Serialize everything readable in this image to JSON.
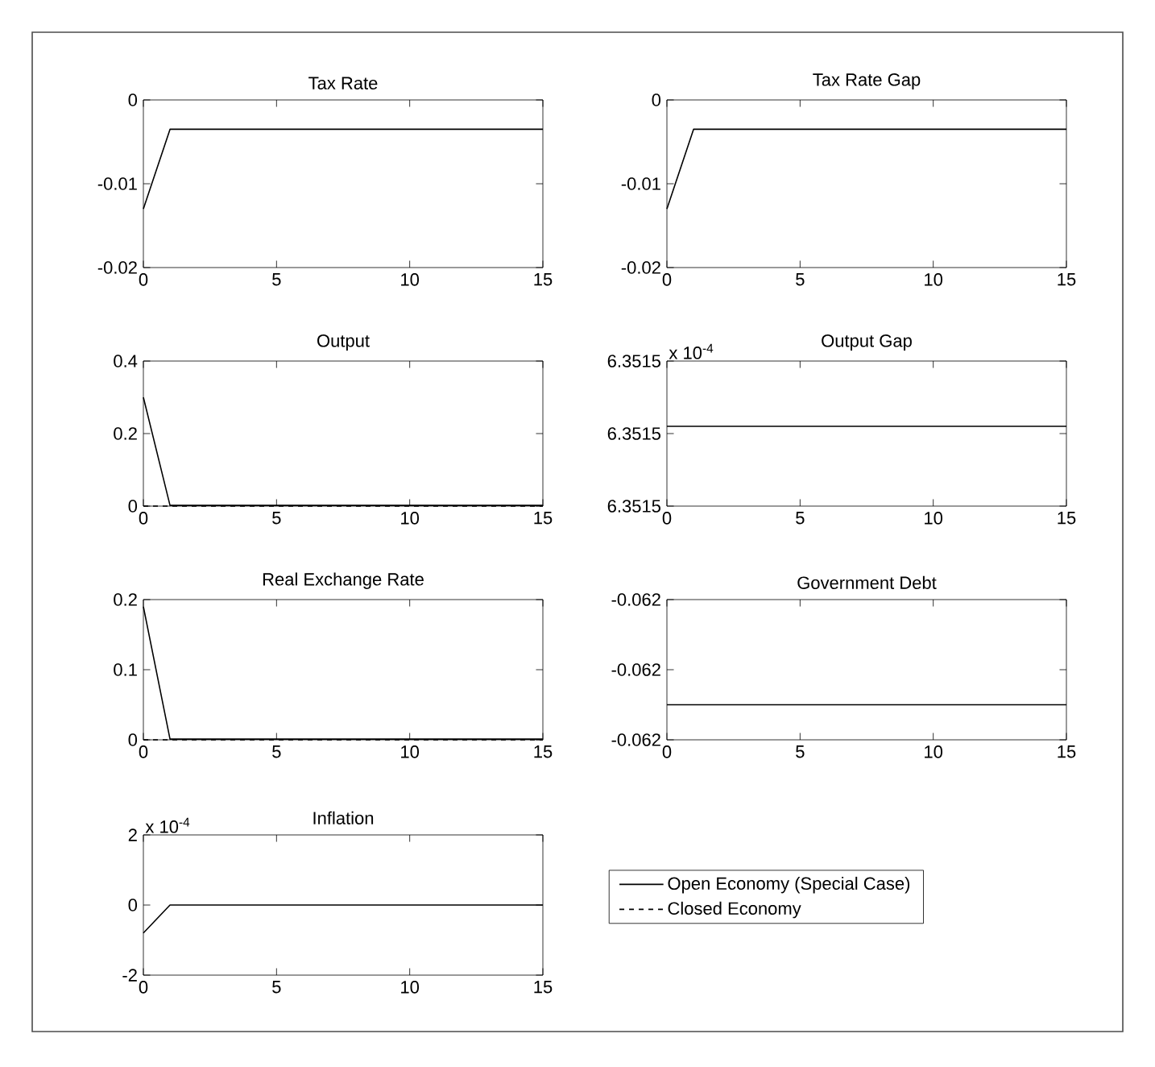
{
  "chart_data": [
    {
      "type": "line",
      "title": "Tax Rate",
      "x": [
        0,
        1,
        2,
        3,
        4,
        5,
        6,
        7,
        8,
        9,
        10,
        11,
        12,
        13,
        14,
        15
      ],
      "xlim": [
        0,
        15
      ],
      "xticks": [
        0,
        5,
        10,
        15
      ],
      "ylim": [
        -0.02,
        0
      ],
      "yticks": [
        -0.02,
        -0.01,
        0
      ],
      "marker": "none",
      "grid": false,
      "legend": false,
      "series": [
        {
          "color": "#000000",
          "line_style": "solid",
          "values": [
            -0.013,
            -0.0035,
            -0.0035,
            -0.0035,
            -0.0035,
            -0.0035,
            -0.0035,
            -0.0035,
            -0.0035,
            -0.0035,
            -0.0035,
            -0.0035,
            -0.0035,
            -0.0035,
            -0.0035,
            -0.0035
          ]
        }
      ]
    },
    {
      "type": "line",
      "title": "Tax Rate Gap",
      "x": [
        0,
        1,
        2,
        3,
        4,
        5,
        6,
        7,
        8,
        9,
        10,
        11,
        12,
        13,
        14,
        15
      ],
      "xlim": [
        0,
        15
      ],
      "xticks": [
        0,
        5,
        10,
        15
      ],
      "ylim": [
        -0.02,
        0
      ],
      "yticks": [
        -0.02,
        -0.01,
        0
      ],
      "marker": "none",
      "grid": false,
      "legend": false,
      "series": [
        {
          "color": "#000000",
          "line_style": "solid",
          "values": [
            -0.013,
            -0.0035,
            -0.0035,
            -0.0035,
            -0.0035,
            -0.0035,
            -0.0035,
            -0.0035,
            -0.0035,
            -0.0035,
            -0.0035,
            -0.0035,
            -0.0035,
            -0.0035,
            -0.0035,
            -0.0035
          ]
        }
      ]
    },
    {
      "type": "line",
      "title": "Output",
      "x": [
        0,
        1,
        2,
        3,
        4,
        5,
        6,
        7,
        8,
        9,
        10,
        11,
        12,
        13,
        14,
        15
      ],
      "xlim": [
        0,
        15
      ],
      "xticks": [
        0,
        5,
        10,
        15
      ],
      "ylim": [
        0,
        0.4
      ],
      "yticks": [
        0,
        0.2,
        0.4
      ],
      "marker": "none",
      "grid": false,
      "legend": false,
      "series": [
        {
          "color": "#000000",
          "line_style": "solid",
          "values": [
            0.3,
            0.002,
            0.002,
            0.002,
            0.002,
            0.002,
            0.002,
            0.002,
            0.002,
            0.002,
            0.002,
            0.002,
            0.002,
            0.002,
            0.002,
            0.002
          ]
        },
        {
          "color": "#000000",
          "line_style": "dashed",
          "values": [
            0,
            0,
            0,
            0,
            0,
            0,
            0,
            0,
            0,
            0,
            0,
            0,
            0,
            0,
            0,
            0
          ]
        }
      ]
    },
    {
      "type": "line",
      "title": "Output Gap",
      "annotations": [
        "x 10$^{-4}$"
      ],
      "x": [
        0,
        1,
        2,
        3,
        4,
        5,
        6,
        7,
        8,
        9,
        10,
        11,
        12,
        13,
        14,
        15
      ],
      "xlim": [
        0,
        15
      ],
      "xticks": [
        0,
        5,
        10,
        15
      ],
      "ylim": [
        6.35148,
        6.35152
      ],
      "yticks": [
        {
          "value": 6.35148,
          "label": "6.3515"
        },
        {
          "value": 6.3515,
          "label": "6.3515"
        },
        {
          "value": 6.35152,
          "label": "6.3515"
        }
      ],
      "marker": "none",
      "grid": false,
      "legend": false,
      "series": [
        {
          "color": "#000000",
          "line_style": "solid",
          "values": [
            6.351502,
            6.351502,
            6.351502,
            6.351502,
            6.351502,
            6.351502,
            6.351502,
            6.351502,
            6.351502,
            6.351502,
            6.351502,
            6.351502,
            6.351502,
            6.351502,
            6.351502,
            6.351502
          ]
        }
      ]
    },
    {
      "type": "line",
      "title": "Real Exchange Rate",
      "x": [
        0,
        1,
        2,
        3,
        4,
        5,
        6,
        7,
        8,
        9,
        10,
        11,
        12,
        13,
        14,
        15
      ],
      "xlim": [
        0,
        15
      ],
      "xticks": [
        0,
        5,
        10,
        15
      ],
      "ylim": [
        0,
        0.2
      ],
      "yticks": [
        0,
        0.1,
        0.2
      ],
      "marker": "none",
      "grid": false,
      "legend": false,
      "series": [
        {
          "color": "#000000",
          "line_style": "solid",
          "values": [
            0.19,
            0.001,
            0.001,
            0.001,
            0.001,
            0.001,
            0.001,
            0.001,
            0.001,
            0.001,
            0.001,
            0.001,
            0.001,
            0.001,
            0.001,
            0.001
          ]
        },
        {
          "color": "#000000",
          "line_style": "dashed",
          "values": [
            0,
            0,
            0,
            0,
            0,
            0,
            0,
            0,
            0,
            0,
            0,
            0,
            0,
            0,
            0,
            0
          ]
        }
      ]
    },
    {
      "type": "line",
      "title": "Government Debt",
      "x": [
        0,
        1,
        2,
        3,
        4,
        5,
        6,
        7,
        8,
        9,
        10,
        11,
        12,
        13,
        14,
        15
      ],
      "xlim": [
        0,
        15
      ],
      "xticks": [
        0,
        5,
        10,
        15
      ],
      "ylim": [
        -0.06204,
        -0.06196
      ],
      "yticks": [
        {
          "value": -0.06204,
          "label": "-0.062"
        },
        {
          "value": -0.062,
          "label": "-0.062"
        },
        {
          "value": -0.06196,
          "label": "-0.062"
        }
      ],
      "marker": "none",
      "grid": false,
      "legend": false,
      "series": [
        {
          "color": "#000000",
          "line_style": "solid",
          "values": [
            -0.06202,
            -0.06202,
            -0.06202,
            -0.06202,
            -0.06202,
            -0.06202,
            -0.06202,
            -0.06202,
            -0.06202,
            -0.06202,
            -0.06202,
            -0.06202,
            -0.06202,
            -0.06202,
            -0.06202,
            -0.06202
          ]
        }
      ]
    },
    {
      "type": "line",
      "title": "Inflation",
      "annotations": [
        "x 10$^{-4}$"
      ],
      "x": [
        0,
        1,
        2,
        3,
        4,
        5,
        6,
        7,
        8,
        9,
        10,
        11,
        12,
        13,
        14,
        15
      ],
      "xlim": [
        0,
        15
      ],
      "xticks": [
        0,
        5,
        10,
        15
      ],
      "ylim": [
        -2,
        2
      ],
      "yticks": [
        -2,
        0,
        2
      ],
      "marker": "none",
      "grid": false,
      "legend": "right",
      "series": [
        {
          "name": "Open Economy (Special Case)",
          "color": "#000000",
          "line_style": "solid",
          "values": [
            -0.8,
            0,
            0,
            0,
            0,
            0,
            0,
            0,
            0,
            0,
            0,
            0,
            0,
            0,
            0,
            0
          ]
        },
        {
          "name": "Closed Economy",
          "color": "#000000",
          "line_style": "dashed",
          "values": [
            null,
            null,
            null,
            null,
            null,
            null,
            null,
            null,
            null,
            null,
            null,
            null,
            null,
            null,
            null,
            null
          ]
        }
      ]
    }
  ]
}
